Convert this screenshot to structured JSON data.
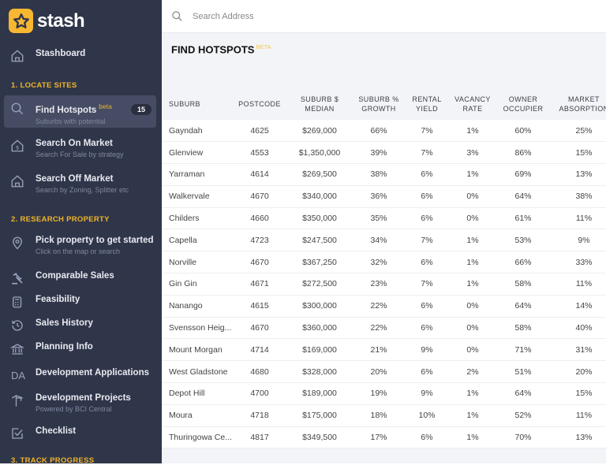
{
  "app": {
    "name": "stash"
  },
  "search": {
    "placeholder": "Search Address"
  },
  "sidebar": {
    "stashboard": "Stashboard",
    "sections": [
      "1. LOCATE SITES",
      "2. RESEARCH PROPERTY",
      "3. TRACK PROGRESS"
    ],
    "items": [
      {
        "label": "Find Hotspots",
        "beta": "beta",
        "sub": "Suburbs with potential",
        "badge": "15",
        "icon": "search-icon"
      },
      {
        "label": "Search On Market",
        "sub": "Search For Sale by strategy",
        "icon": "house-dollar-icon"
      },
      {
        "label": "Search Off Market",
        "sub": "Search by Zoning, Splitter etc",
        "icon": "house-icon"
      },
      {
        "label": "Pick property to get started",
        "sub": "Click on the map or search",
        "icon": "location-pin-icon"
      },
      {
        "label": "Comparable Sales",
        "icon": "gavel-icon"
      },
      {
        "label": "Feasibility",
        "icon": "calculator-icon"
      },
      {
        "label": "Sales History",
        "icon": "history-icon"
      },
      {
        "label": "Planning Info",
        "icon": "bank-icon"
      },
      {
        "label": "Development Applications",
        "icon": "da-text-icon",
        "icon_text": "DA"
      },
      {
        "label": "Development Projects",
        "sub": "Powered by BCI Central",
        "icon": "crane-icon"
      },
      {
        "label": "Checklist",
        "icon": "checkbox-icon"
      }
    ]
  },
  "main": {
    "title": "FIND HOTSPOTS",
    "beta": "BETA",
    "columns": [
      [
        "SUBURB"
      ],
      [
        "POSTCODE"
      ],
      [
        "SUBURB $",
        "MEDIAN"
      ],
      [
        "SUBURB %",
        "GROWTH"
      ],
      [
        "RENTAL",
        "YIELD"
      ],
      [
        "VACANCY",
        "RATE"
      ],
      [
        "OWNER",
        "OCCUPIER"
      ],
      [
        "MARKET",
        "ABSORPTION"
      ]
    ],
    "rows": [
      [
        "Gayndah",
        "4625",
        "$269,000",
        "66%",
        "7%",
        "1%",
        "60%",
        "25%"
      ],
      [
        "Glenview",
        "4553",
        "$1,350,000",
        "39%",
        "7%",
        "3%",
        "86%",
        "15%"
      ],
      [
        "Yarraman",
        "4614",
        "$269,500",
        "38%",
        "6%",
        "1%",
        "69%",
        "13%"
      ],
      [
        "Walkervale",
        "4670",
        "$340,000",
        "36%",
        "6%",
        "0%",
        "64%",
        "38%"
      ],
      [
        "Childers",
        "4660",
        "$350,000",
        "35%",
        "6%",
        "0%",
        "61%",
        "11%"
      ],
      [
        "Capella",
        "4723",
        "$247,500",
        "34%",
        "7%",
        "1%",
        "53%",
        "9%"
      ],
      [
        "Norville",
        "4670",
        "$367,250",
        "32%",
        "6%",
        "1%",
        "66%",
        "33%"
      ],
      [
        "Gin Gin",
        "4671",
        "$272,500",
        "23%",
        "7%",
        "1%",
        "58%",
        "11%"
      ],
      [
        "Nanango",
        "4615",
        "$300,000",
        "22%",
        "6%",
        "0%",
        "64%",
        "14%"
      ],
      [
        "Svensson Heig...",
        "4670",
        "$360,000",
        "22%",
        "6%",
        "0%",
        "58%",
        "40%"
      ],
      [
        "Mount Morgan",
        "4714",
        "$169,000",
        "21%",
        "9%",
        "0%",
        "71%",
        "31%"
      ],
      [
        "West Gladstone",
        "4680",
        "$328,000",
        "20%",
        "6%",
        "2%",
        "51%",
        "20%"
      ],
      [
        "Depot Hill",
        "4700",
        "$189,000",
        "19%",
        "9%",
        "1%",
        "64%",
        "15%"
      ],
      [
        "Moura",
        "4718",
        "$175,000",
        "18%",
        "10%",
        "1%",
        "52%",
        "11%"
      ],
      [
        "Thuringowa Ce...",
        "4817",
        "$349,500",
        "17%",
        "6%",
        "1%",
        "70%",
        "13%"
      ]
    ]
  },
  "colors": {
    "sidebar": "#30364a",
    "accent": "#f0b429",
    "active": "#464c63"
  }
}
